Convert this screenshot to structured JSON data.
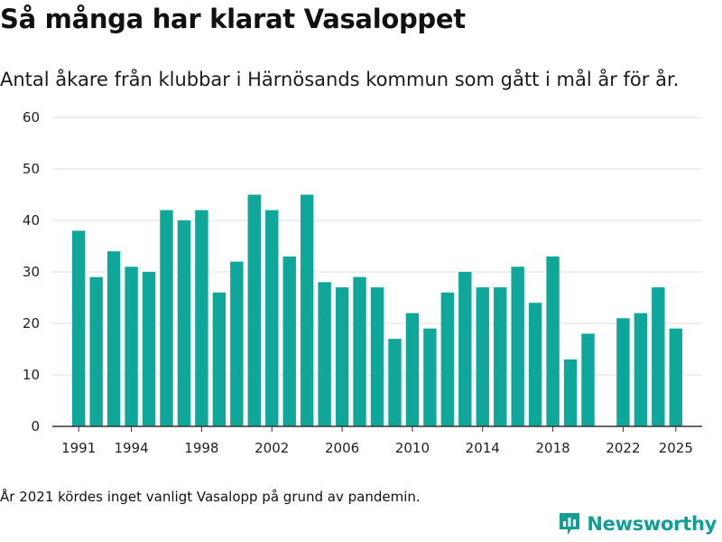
{
  "title": "Så många har klarat Vasaloppet",
  "subtitle": "Antal åkare från klubbar i Härnösands kommun som gått i mål år för år.",
  "footnote": "År 2021 kördes inget vanligt Vasalopp på grund av pandemin.",
  "brand": {
    "name": "Newsworthy",
    "icon": "bar-chart-logo-icon"
  },
  "colors": {
    "bar": "#0fa79a",
    "brand": "#119f95",
    "grid": "#dddddd",
    "axis": "#333333"
  },
  "chart_data": {
    "type": "bar",
    "x": [
      1991,
      1992,
      1993,
      1994,
      1995,
      1996,
      1997,
      1998,
      1999,
      2000,
      2001,
      2002,
      2003,
      2004,
      2005,
      2006,
      2007,
      2008,
      2009,
      2010,
      2011,
      2012,
      2013,
      2014,
      2015,
      2016,
      2017,
      2018,
      2019,
      2020,
      2021,
      2022,
      2023,
      2024,
      2025
    ],
    "values": [
      38,
      29,
      34,
      31,
      30,
      42,
      40,
      42,
      26,
      32,
      45,
      42,
      33,
      45,
      28,
      27,
      29,
      27,
      17,
      22,
      19,
      26,
      30,
      27,
      27,
      31,
      24,
      33,
      13,
      18,
      null,
      21,
      22,
      27,
      19
    ],
    "xticks": [
      "1991",
      "1994",
      "1998",
      "2002",
      "2006",
      "2010",
      "2014",
      "2018",
      "2022",
      "2025"
    ],
    "yticks": [
      "0",
      "10",
      "20",
      "30",
      "40",
      "50",
      "60"
    ],
    "ylim": [
      0,
      60
    ],
    "xlim": [
      1989.5,
      2026.5
    ],
    "grid": true
  }
}
